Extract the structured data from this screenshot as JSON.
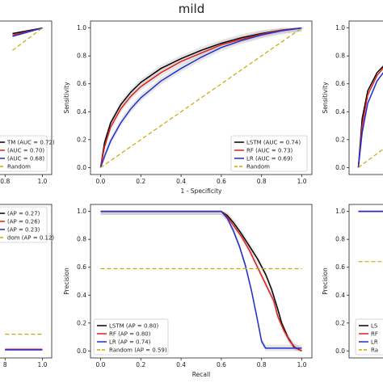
{
  "figure_title": "mild",
  "colors": {
    "LSTM": "#000000",
    "RF": "#e3201b",
    "LR": "#1f2fd0",
    "Random": "#c8a800",
    "band": "#c8c8c8"
  },
  "chart_data": [
    {
      "id": "roc-mild",
      "type": "line",
      "xlabel": "1 - Specificity",
      "ylabel": "Sensitivity",
      "xlim": [
        0,
        1
      ],
      "ylim": [
        0,
        1
      ],
      "xticks": [
        "0.0",
        "0.2",
        "0.4",
        "0.6",
        "0.8",
        "1.0"
      ],
      "yticks": [
        "0.0",
        "0.2",
        "0.4",
        "0.6",
        "0.8",
        "1.0"
      ],
      "legend_position": "bottom-right",
      "series": [
        {
          "name": "LSTM (AUC = 0.74)",
          "color": "LSTM",
          "style": "solid",
          "x": [
            0,
            0.02,
            0.05,
            0.1,
            0.15,
            0.2,
            0.3,
            0.4,
            0.5,
            0.6,
            0.7,
            0.8,
            0.9,
            1.0
          ],
          "y": [
            0,
            0.18,
            0.32,
            0.45,
            0.54,
            0.61,
            0.71,
            0.78,
            0.84,
            0.89,
            0.93,
            0.96,
            0.985,
            1.0
          ]
        },
        {
          "name": "RF (AUC = 0.73)",
          "color": "RF",
          "style": "solid",
          "x": [
            0,
            0.02,
            0.05,
            0.1,
            0.15,
            0.2,
            0.3,
            0.4,
            0.5,
            0.6,
            0.7,
            0.8,
            0.9,
            1.0
          ],
          "y": [
            0,
            0.15,
            0.29,
            0.42,
            0.51,
            0.58,
            0.68,
            0.76,
            0.82,
            0.88,
            0.92,
            0.955,
            0.985,
            1.0
          ]
        },
        {
          "name": "LR (AUC = 0.69)",
          "color": "LR",
          "style": "solid",
          "x": [
            0,
            0.02,
            0.05,
            0.1,
            0.15,
            0.2,
            0.3,
            0.4,
            0.5,
            0.6,
            0.7,
            0.8,
            0.9,
            1.0
          ],
          "y": [
            0,
            0.08,
            0.19,
            0.32,
            0.42,
            0.5,
            0.62,
            0.71,
            0.79,
            0.86,
            0.91,
            0.95,
            0.98,
            1.0
          ]
        },
        {
          "name": "Random",
          "color": "Random",
          "style": "dashed",
          "x": [
            0,
            1
          ],
          "y": [
            0,
            1
          ]
        }
      ]
    },
    {
      "id": "pr-mild",
      "type": "line",
      "xlabel": "Recall",
      "ylabel": "Precision",
      "xlim": [
        0,
        1
      ],
      "ylim": [
        0,
        1
      ],
      "xticks": [
        "0.0",
        "0.2",
        "0.4",
        "0.6",
        "0.8",
        "1.0"
      ],
      "yticks": [
        "0.0",
        "0.2",
        "0.4",
        "0.6",
        "0.8",
        "1.0"
      ],
      "legend_position": "bottom-left",
      "series": [
        {
          "name": "LSTM (AP = 0.80)",
          "color": "LSTM",
          "style": "solid",
          "x": [
            0,
            0.2,
            0.4,
            0.6,
            0.63,
            0.66,
            0.7,
            0.74,
            0.78,
            0.82,
            0.85,
            0.88,
            0.9,
            0.93,
            0.96,
            1.0
          ],
          "y": [
            1,
            1,
            1,
            1,
            0.97,
            0.92,
            0.84,
            0.75,
            0.66,
            0.55,
            0.44,
            0.3,
            0.2,
            0.1,
            0.03,
            0.0
          ]
        },
        {
          "name": "RF (AP = 0.80)",
          "color": "RF",
          "style": "solid",
          "x": [
            0,
            0.2,
            0.4,
            0.6,
            0.63,
            0.66,
            0.7,
            0.74,
            0.78,
            0.82,
            0.86,
            0.88,
            0.91,
            0.94,
            0.97,
            1.0
          ],
          "y": [
            1,
            1,
            1,
            1,
            0.96,
            0.9,
            0.82,
            0.72,
            0.6,
            0.48,
            0.36,
            0.25,
            0.15,
            0.07,
            0.02,
            0.0
          ]
        },
        {
          "name": "LR (AP = 0.74)",
          "color": "LR",
          "style": "solid",
          "x": [
            0,
            0.2,
            0.4,
            0.6,
            0.63,
            0.66,
            0.69,
            0.72,
            0.75,
            0.78,
            0.8,
            0.82,
            0.85,
            1.0
          ],
          "y": [
            1,
            1,
            1,
            1,
            0.95,
            0.86,
            0.75,
            0.61,
            0.43,
            0.22,
            0.07,
            0.02,
            0.02,
            0.02
          ]
        },
        {
          "name": "Random (AP = 0.59)",
          "color": "Random",
          "style": "dashed",
          "x": [
            0,
            1
          ],
          "y": [
            0.59,
            0.59
          ]
        }
      ]
    },
    {
      "id": "roc-left-partial",
      "type": "line",
      "xticks": [
        "0.8",
        "1.0"
      ],
      "legend": [
        "TM (AUC = 0.72)",
        "(AUC = 0.70)",
        "(AUC = 0.68)",
        "Random"
      ],
      "series": [
        {
          "name": "TM (AUC = 0.72)",
          "color": "LSTM",
          "style": "solid",
          "x": [
            0.84,
            1.0
          ],
          "y": [
            0.96,
            1.0
          ]
        },
        {
          "name": "(AUC = 0.70)",
          "color": "RF",
          "style": "solid",
          "x": [
            0.84,
            1.0
          ],
          "y": [
            0.95,
            1.0
          ]
        },
        {
          "name": "(AUC = 0.68)",
          "color": "LR",
          "style": "solid",
          "x": [
            0.84,
            1.0
          ],
          "y": [
            0.94,
            1.0
          ]
        },
        {
          "name": "Random",
          "color": "Random",
          "style": "dashed",
          "x": [
            0.84,
            1.0
          ],
          "y": [
            0.84,
            1.0
          ]
        }
      ]
    },
    {
      "id": "pr-left-partial",
      "type": "line",
      "xticks": [
        "8",
        "1.0"
      ],
      "legend": [
        "(AP = 0.27)",
        "(AP = 0.26)",
        "(AP = 0.23)",
        "dom (AP = 0.12)"
      ],
      "series": [
        {
          "name": "(AP = 0.27)",
          "color": "LSTM",
          "style": "solid",
          "x": [
            0.8,
            1.0
          ],
          "y": [
            0.01,
            0.01
          ]
        },
        {
          "name": "(AP = 0.26)",
          "color": "RF",
          "style": "solid",
          "x": [
            0.8,
            1.0
          ],
          "y": [
            0.012,
            0.012
          ]
        },
        {
          "name": "(AP = 0.23)",
          "color": "LR",
          "style": "solid",
          "x": [
            0.8,
            1.0
          ],
          "y": [
            0.008,
            0.008
          ]
        },
        {
          "name": "dom (AP = 0.12)",
          "color": "Random",
          "style": "dashed",
          "x": [
            0.8,
            1.0
          ],
          "y": [
            0.12,
            0.12
          ]
        }
      ]
    },
    {
      "id": "roc-right-partial",
      "type": "line",
      "ylabel": "Sensitivity",
      "yticks": [
        "0.0",
        "0.2",
        "0.4",
        "0.6",
        "0.8",
        "1.0"
      ],
      "series": [
        {
          "name": "LSTM",
          "color": "LSTM",
          "style": "solid",
          "x": [
            0,
            0.02,
            0.05,
            0.1,
            0.15
          ],
          "y": [
            0,
            0.35,
            0.55,
            0.68,
            0.75
          ]
        },
        {
          "name": "RF",
          "color": "RF",
          "style": "solid",
          "x": [
            0,
            0.02,
            0.05,
            0.1,
            0.15
          ],
          "y": [
            0,
            0.3,
            0.52,
            0.66,
            0.74
          ]
        },
        {
          "name": "LR",
          "color": "LR",
          "style": "solid",
          "x": [
            0,
            0.02,
            0.05,
            0.1,
            0.15
          ],
          "y": [
            0,
            0.25,
            0.46,
            0.62,
            0.71
          ]
        },
        {
          "name": "Random",
          "color": "Random",
          "style": "dashed",
          "x": [
            0,
            0.15
          ],
          "y": [
            0,
            0.15
          ]
        }
      ]
    },
    {
      "id": "pr-right-partial",
      "type": "line",
      "ylabel": "Precision",
      "yticks": [
        "0.0",
        "0.2",
        "0.4",
        "0.6",
        "0.8",
        "1.0"
      ],
      "legend": [
        "LS",
        "RF",
        "LR",
        "Ra"
      ],
      "series": [
        {
          "name": "LS",
          "color": "LSTM",
          "style": "solid",
          "x": [
            0,
            0.15
          ],
          "y": [
            1,
            1
          ]
        },
        {
          "name": "RF",
          "color": "RF",
          "style": "solid",
          "x": [
            0,
            0.15
          ],
          "y": [
            1,
            1
          ]
        },
        {
          "name": "LR",
          "color": "LR",
          "style": "solid",
          "x": [
            0,
            0.15
          ],
          "y": [
            1,
            1
          ]
        },
        {
          "name": "Ra",
          "color": "Random",
          "style": "dashed",
          "x": [
            0,
            0.15
          ],
          "y": [
            0.64,
            0.64
          ]
        }
      ]
    }
  ]
}
